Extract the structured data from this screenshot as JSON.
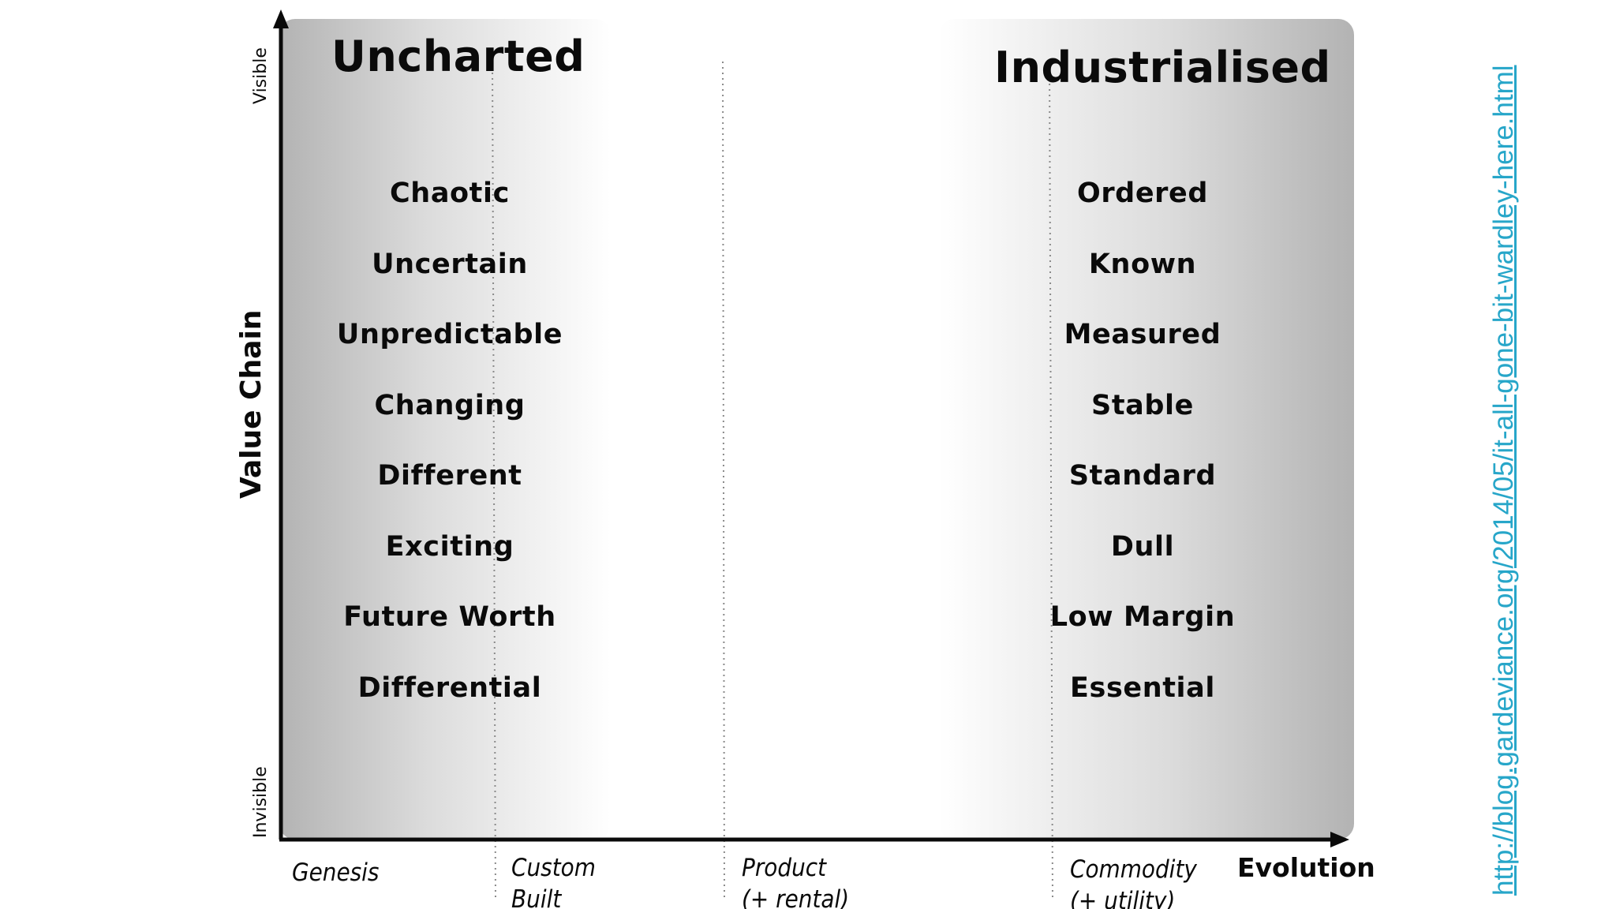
{
  "diagram": {
    "y_axis": {
      "title": "Value Chain",
      "top_label": "Visible",
      "bottom_label": "Invisible"
    },
    "x_axis": {
      "title": "Evolution",
      "stages": [
        {
          "line1": "Genesis",
          "line2": ""
        },
        {
          "line1": "Custom",
          "line2": "Built"
        },
        {
          "line1": "Product",
          "line2": "(+ rental)"
        },
        {
          "line1": "Commodity",
          "line2": "(+ utility)"
        }
      ]
    },
    "left_region": {
      "title": "Uncharted",
      "traits": [
        "Chaotic",
        "Uncertain",
        "Unpredictable",
        "Changing",
        "Different",
        "Exciting",
        "Future Worth",
        "Differential"
      ]
    },
    "right_region": {
      "title": "Industrialised",
      "traits": [
        "Ordered",
        "Known",
        "Measured",
        "Stable",
        "Standard",
        "Dull",
        "Low Margin",
        "Essential"
      ]
    },
    "source_link": "http://blog.gardeviance.org/2014/05/it-all-gone-bit-wardley-here.html",
    "colors": {
      "text": "#0a0a0a",
      "link": "#27a6c9",
      "shade_dark": "#b8b8b8",
      "shade_light": "#ffffff"
    }
  }
}
